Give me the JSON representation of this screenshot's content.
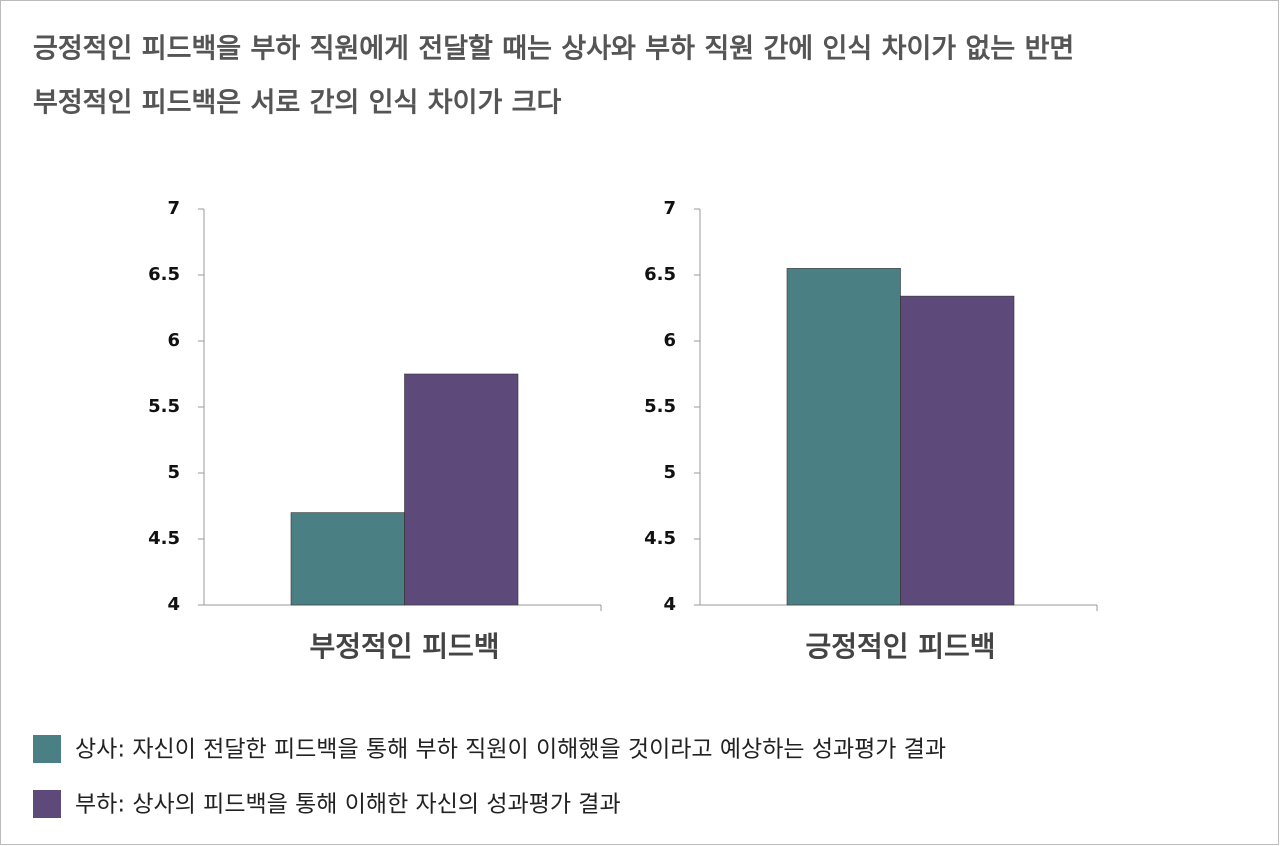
{
  "chart_data": {
    "type": "bar",
    "title": [
      "긍정적인 피드백을 부하 직원에게 전달할 때는 상사와 부하 직원 간에 인식 차이가 없는 반면",
      "부정적인 피드백은 서로 간의 인식 차이가 크다"
    ],
    "categories": [
      "부정적인 피드백",
      "긍정적인 피드백"
    ],
    "series": [
      {
        "name": "상사: 자신이 전달한 피드백을 통해 부하 직원이 이해했을 것이라고 예상하는 성과평가 결과",
        "color": "#4a8084",
        "values": [
          4.7,
          6.55
        ]
      },
      {
        "name": "부하: 상사의 피드백을 통해 이해한 자신의 성과평가 결과",
        "color": "#5e4a7a",
        "values": [
          5.75,
          6.34
        ]
      }
    ],
    "ylim": [
      4,
      7
    ],
    "yticks": [
      4,
      4.5,
      5,
      5.5,
      6,
      6.5,
      7
    ]
  }
}
